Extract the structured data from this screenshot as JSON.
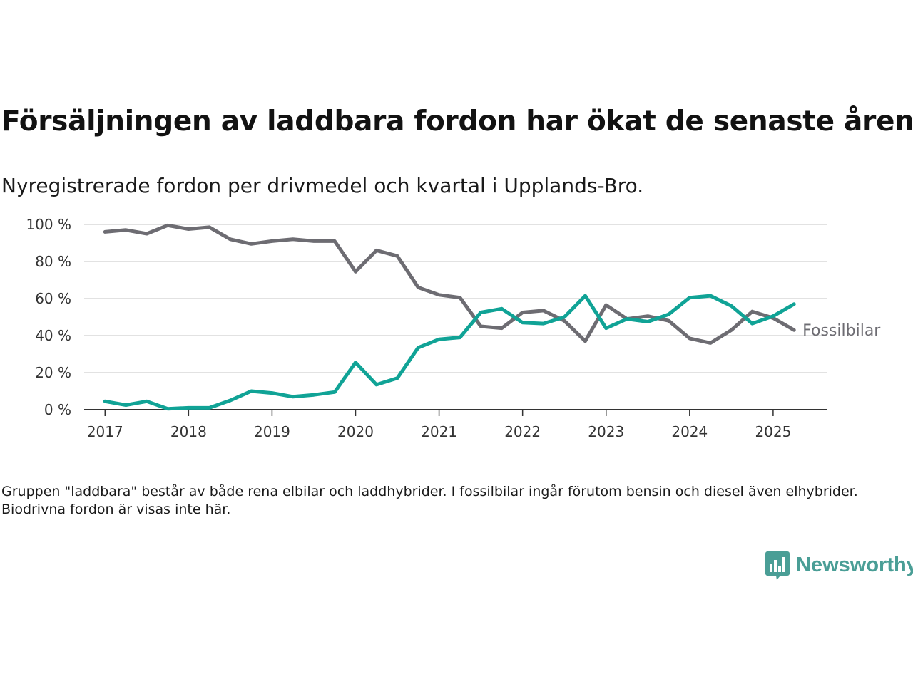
{
  "header": {
    "title": "Försäljningen av laddbara fordon har ökat de senaste åren",
    "subtitle": "Nyregistrerade fordon per drivmedel och kvartal i Upplands-Bro."
  },
  "footer": {
    "note": "Gruppen \"laddbara\" består av både rena elbilar och laddhybrider. I fossilbilar ingår förutom bensin och diesel även elhybrider. Biodrivna fordon är visas inte här.",
    "brand": "Newsworthy"
  },
  "colors": {
    "fossil": "#6d6c72",
    "laddbara": "#10a396",
    "grid": "#d9d9d9",
    "axis": "#333333",
    "brand": "#4a9e96"
  },
  "chart_data": {
    "type": "line",
    "title": "",
    "xlabel": "",
    "ylabel": "",
    "ylim": [
      0,
      100
    ],
    "yticks": [
      0,
      20,
      40,
      60,
      80,
      100
    ],
    "ytick_labels": [
      "0 %",
      "20 %",
      "40 %",
      "60 %",
      "80 %",
      "100 %"
    ],
    "xlim": [
      2016.75,
      2025.65
    ],
    "xticks": [
      2017,
      2018,
      2019,
      2020,
      2021,
      2022,
      2023,
      2024,
      2025
    ],
    "xtick_labels": [
      "2017",
      "2018",
      "2019",
      "2020",
      "2021",
      "2022",
      "2023",
      "2024",
      "2025"
    ],
    "grid": true,
    "legend": "inline-right",
    "x": [
      2017.0,
      2017.25,
      2017.5,
      2017.75,
      2018.0,
      2018.25,
      2018.5,
      2018.75,
      2019.0,
      2019.25,
      2019.5,
      2019.75,
      2020.0,
      2020.25,
      2020.5,
      2020.75,
      2021.0,
      2021.25,
      2021.5,
      2021.75,
      2022.0,
      2022.25,
      2022.5,
      2022.75,
      2023.0,
      2023.25,
      2023.5,
      2023.75,
      2024.0,
      2024.25,
      2024.5,
      2024.75,
      2025.0,
      2025.25
    ],
    "series": [
      {
        "name": "Fossilbilar",
        "key": "fossil",
        "values": [
          96,
          97,
          95,
          99.5,
          97.5,
          98.5,
          92,
          89.5,
          91,
          92,
          91,
          91,
          74.5,
          86,
          83,
          66,
          62,
          60.5,
          45,
          44,
          52.5,
          53.5,
          48,
          37,
          56.5,
          49,
          50.5,
          48,
          38.5,
          36,
          43,
          53,
          49.5,
          43
        ]
      },
      {
        "name": "",
        "key": "laddbara",
        "values": [
          4.5,
          2.5,
          4.5,
          0.5,
          1,
          1,
          5,
          10,
          9,
          7,
          8,
          9.5,
          25.5,
          13.5,
          17,
          33.5,
          38,
          39,
          52.5,
          54.5,
          47,
          46.5,
          50,
          61.5,
          44,
          49,
          47.5,
          51.5,
          60.5,
          61.5,
          56,
          46.5,
          50.5,
          57
        ]
      }
    ]
  }
}
